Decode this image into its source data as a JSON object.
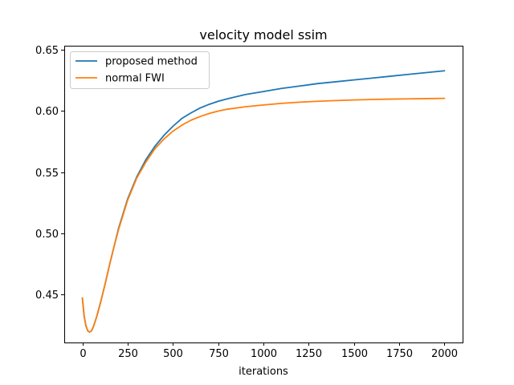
{
  "chart_data": {
    "type": "line",
    "title": "velocity model ssim",
    "xlabel": "iterations",
    "ylabel": "",
    "xlim": [
      -100,
      2100
    ],
    "ylim": [
      0.4105,
      0.6535
    ],
    "xticks": [
      0,
      250,
      500,
      750,
      1000,
      1250,
      1500,
      1750,
      2000
    ],
    "xtick_labels": [
      "0",
      "250",
      "500",
      "750",
      "1000",
      "1250",
      "1500",
      "1750",
      "2000"
    ],
    "yticks": [
      0.45,
      0.5,
      0.55,
      0.6,
      0.65
    ],
    "ytick_labels": [
      "0.45",
      "0.50",
      "0.55",
      "0.60",
      "0.65"
    ],
    "grid": false,
    "legend_position": "top-left",
    "series": [
      {
        "name": "proposed method",
        "color": "#1f77b4",
        "x": [
          0,
          10,
          20,
          30,
          40,
          50,
          60,
          80,
          100,
          125,
          150,
          175,
          200,
          250,
          300,
          350,
          400,
          450,
          500,
          550,
          600,
          650,
          700,
          750,
          800,
          900,
          1000,
          1100,
          1200,
          1300,
          1400,
          1500,
          1600,
          1700,
          1800,
          1900,
          2000
        ],
        "y": [
          0.447,
          0.432,
          0.424,
          0.42,
          0.419,
          0.42,
          0.423,
          0.432,
          0.443,
          0.458,
          0.474,
          0.489,
          0.504,
          0.528,
          0.546,
          0.56,
          0.571,
          0.58,
          0.5875,
          0.594,
          0.5985,
          0.6025,
          0.6055,
          0.608,
          0.61,
          0.6135,
          0.616,
          0.6185,
          0.6205,
          0.6225,
          0.624,
          0.6255,
          0.627,
          0.6285,
          0.63,
          0.6315,
          0.633
        ]
      },
      {
        "name": "normal FWI",
        "color": "#ff7f0e",
        "x": [
          0,
          10,
          20,
          30,
          40,
          50,
          60,
          80,
          100,
          125,
          150,
          175,
          200,
          250,
          300,
          350,
          400,
          450,
          500,
          550,
          600,
          650,
          700,
          750,
          800,
          900,
          1000,
          1100,
          1200,
          1300,
          1400,
          1500,
          1600,
          1700,
          1800,
          1900,
          2000
        ],
        "y": [
          0.447,
          0.432,
          0.424,
          0.42,
          0.419,
          0.42,
          0.423,
          0.432,
          0.443,
          0.458,
          0.474,
          0.489,
          0.503,
          0.527,
          0.545,
          0.558,
          0.569,
          0.577,
          0.5835,
          0.5885,
          0.5925,
          0.5955,
          0.598,
          0.6,
          0.6015,
          0.6035,
          0.605,
          0.6063,
          0.6073,
          0.608,
          0.6086,
          0.6091,
          0.6095,
          0.6098,
          0.61,
          0.6102,
          0.6104
        ]
      }
    ]
  }
}
